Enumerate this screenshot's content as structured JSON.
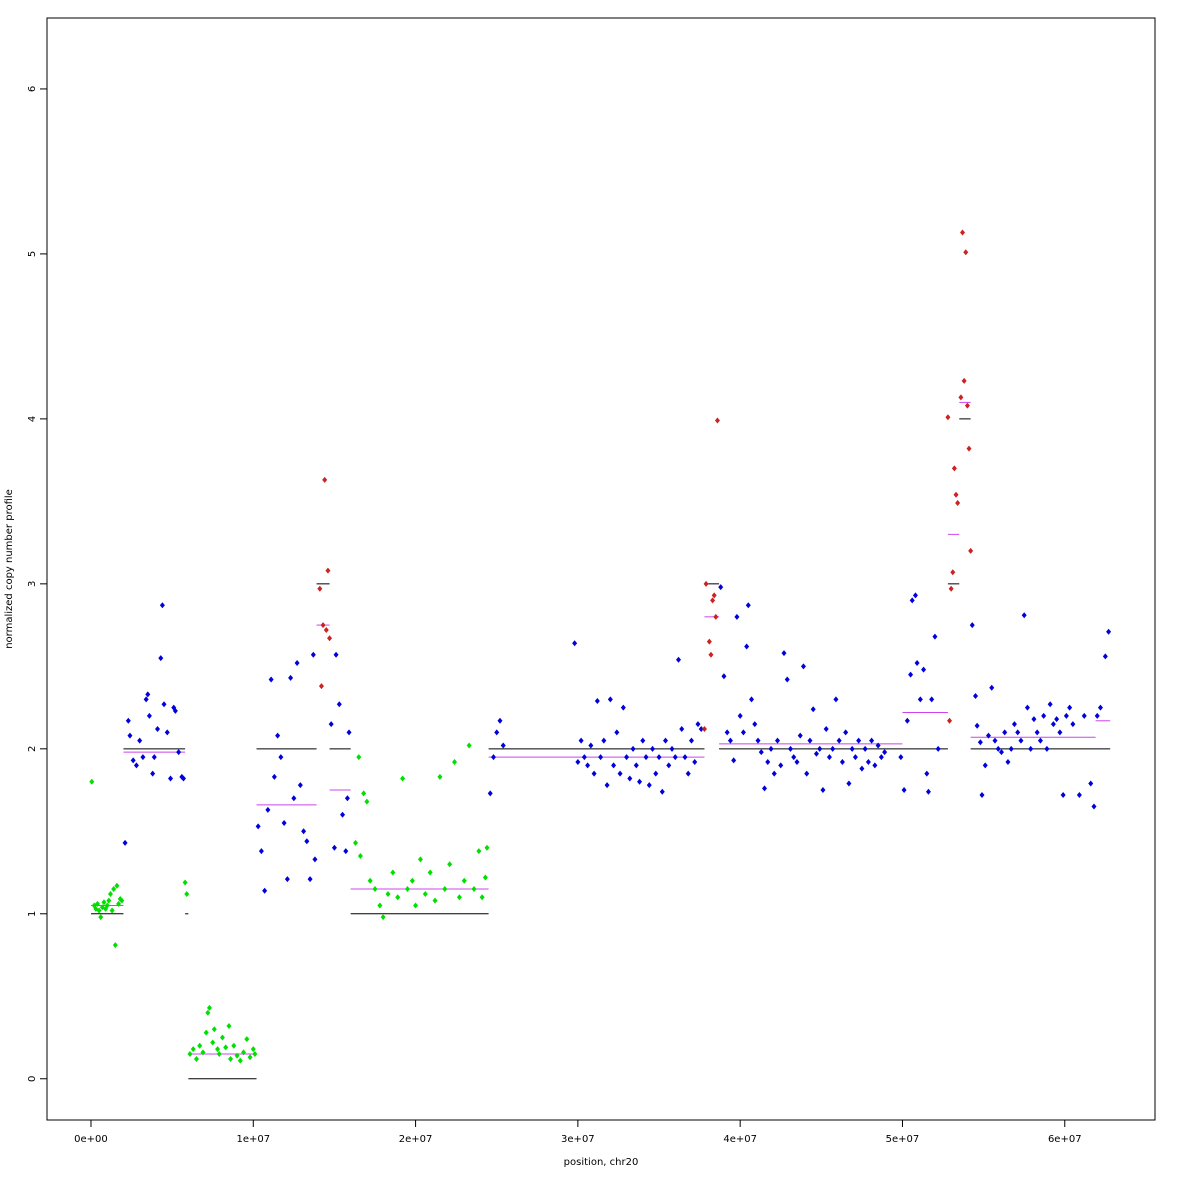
{
  "chart_data": {
    "type": "scatter",
    "xlabel": "position, chr20",
    "ylabel": "normalized copy number profile",
    "xlim": [
      -2710000.0,
      65560000.0
    ],
    "ylim": [
      -0.25,
      6.43
    ],
    "xticks": [
      {
        "value": 0,
        "label": "0e+00"
      },
      {
        "value": 10000000.0,
        "label": "1e+07"
      },
      {
        "value": 20000000.0,
        "label": "2e+07"
      },
      {
        "value": 30000000.0,
        "label": "3e+07"
      },
      {
        "value": 40000000.0,
        "label": "4e+07"
      },
      {
        "value": 50000000.0,
        "label": "5e+07"
      },
      {
        "value": 60000000.0,
        "label": "6e+07"
      }
    ],
    "yticks": [
      0,
      1,
      2,
      3,
      4,
      5,
      6
    ],
    "series": [
      {
        "color": "#00e000",
        "x": [
          50000.0,
          200000.0,
          300000.0,
          400000.0,
          500000.0,
          600000.0,
          700000.0,
          800000.0,
          900000.0,
          1000000.0,
          1100000.0,
          1200000.0,
          1300000.0,
          1400000.0,
          1500000.0,
          1600000.0,
          1700000.0,
          1800000.0,
          1900000.0,
          5800000.0,
          5900000.0,
          6100000.0,
          6300000.0,
          6500000.0,
          6700000.0,
          6900000.0,
          7100000.0,
          7200000.0,
          7300000.0,
          7500000.0,
          7600000.0,
          7800000.0,
          7900000.0,
          8100000.0,
          8300000.0,
          8500000.0,
          8600000.0,
          8800000.0,
          9000000.0,
          9200000.0,
          9400000.0,
          9600000.0,
          9800000.0,
          10000000.0,
          10100000.0,
          16300000.0,
          16500000.0,
          16600000.0,
          16800000.0,
          17000000.0,
          17200000.0,
          17500000.0,
          17800000.0,
          18000000.0,
          18300000.0,
          18600000.0,
          18900000.0,
          19200000.0,
          19500000.0,
          19800000.0,
          20000000.0,
          20300000.0,
          20600000.0,
          20900000.0,
          21200000.0,
          21500000.0,
          21800000.0,
          22100000.0,
          22400000.0,
          22700000.0,
          23000000.0,
          23300000.0,
          23600000.0,
          23900000.0,
          24100000.0,
          24300000.0,
          24400000.0
        ],
        "values": [
          1.8,
          1.05,
          1.03,
          1.06,
          1.02,
          0.98,
          1.04,
          1.07,
          1.03,
          1.05,
          1.08,
          1.12,
          1.02,
          1.15,
          0.81,
          1.17,
          1.06,
          1.09,
          1.08,
          1.19,
          1.12,
          0.15,
          0.18,
          0.12,
          0.2,
          0.16,
          0.28,
          0.4,
          0.43,
          0.22,
          0.3,
          0.18,
          0.15,
          0.25,
          0.19,
          0.32,
          0.12,
          0.2,
          0.14,
          0.11,
          0.16,
          0.24,
          0.13,
          0.18,
          0.15,
          1.43,
          1.95,
          1.35,
          1.73,
          1.68,
          1.2,
          1.15,
          1.05,
          0.98,
          1.12,
          1.25,
          1.1,
          1.82,
          1.15,
          1.2,
          1.05,
          1.33,
          1.12,
          1.25,
          1.08,
          1.83,
          1.15,
          1.3,
          1.92,
          1.1,
          1.2,
          2.02,
          1.15,
          1.38,
          1.1,
          1.22,
          1.4
        ]
      },
      {
        "color": "#0000dd",
        "x": [
          2100000.0,
          2300000.0,
          2400000.0,
          2600000.0,
          2800000.0,
          3000000.0,
          3200000.0,
          3400000.0,
          3500000.0,
          3600000.0,
          3800000.0,
          3900000.0,
          4100000.0,
          4300000.0,
          4400000.0,
          4500000.0,
          4700000.0,
          4900000.0,
          5100000.0,
          5200000.0,
          5400000.0,
          5600000.0,
          5700000.0,
          10300000.0,
          10500000.0,
          10700000.0,
          10900000.0,
          11100000.0,
          11300000.0,
          11500000.0,
          11700000.0,
          11900000.0,
          12100000.0,
          12300000.0,
          12500000.0,
          12700000.0,
          12900000.0,
          13100000.0,
          13300000.0,
          13500000.0,
          13700000.0,
          13800000.0,
          14800000.0,
          15000000.0,
          15100000.0,
          15300000.0,
          15500000.0,
          15700000.0,
          15800000.0,
          15900000.0,
          24600000.0,
          24800000.0,
          25000000.0,
          25200000.0,
          25400000.0,
          29800000.0,
          30000000.0,
          30200000.0,
          30400000.0,
          30600000.0,
          30800000.0,
          31000000.0,
          31200000.0,
          31400000.0,
          31600000.0,
          31800000.0,
          32000000.0,
          32200000.0,
          32400000.0,
          32600000.0,
          32800000.0,
          33000000.0,
          33200000.0,
          33400000.0,
          33600000.0,
          33800000.0,
          34000000.0,
          34200000.0,
          34400000.0,
          34600000.0,
          34800000.0,
          35000000.0,
          35200000.0,
          35400000.0,
          35600000.0,
          35800000.0,
          36000000.0,
          36200000.0,
          36400000.0,
          36600000.0,
          36800000.0,
          37000000.0,
          37200000.0,
          37400000.0,
          37600000.0,
          38800000.0,
          39000000.0,
          39200000.0,
          39400000.0,
          39600000.0,
          39800000.0,
          40000000.0,
          40200000.0,
          40400000.0,
          40500000.0,
          40700000.0,
          40900000.0,
          41100000.0,
          41300000.0,
          41500000.0,
          41700000.0,
          41900000.0,
          42100000.0,
          42300000.0,
          42500000.0,
          42700000.0,
          42900000.0,
          43100000.0,
          43300000.0,
          43500000.0,
          43700000.0,
          43900000.0,
          44100000.0,
          44300000.0,
          44500000.0,
          44700000.0,
          44900000.0,
          45100000.0,
          45300000.0,
          45500000.0,
          45700000.0,
          45900000.0,
          46100000.0,
          46300000.0,
          46500000.0,
          46700000.0,
          46900000.0,
          47100000.0,
          47300000.0,
          47500000.0,
          47700000.0,
          47900000.0,
          48100000.0,
          48300000.0,
          48500000.0,
          48700000.0,
          48900000.0,
          49900000.0,
          50100000.0,
          50300000.0,
          50500000.0,
          50600000.0,
          50800000.0,
          50900000.0,
          51100000.0,
          51300000.0,
          51500000.0,
          51600000.0,
          51800000.0,
          52000000.0,
          52200000.0,
          54300000.0,
          54500000.0,
          54600000.0,
          54800000.0,
          54900000.0,
          55100000.0,
          55300000.0,
          55500000.0,
          55700000.0,
          55900000.0,
          56100000.0,
          56300000.0,
          56500000.0,
          56700000.0,
          56900000.0,
          57100000.0,
          57300000.0,
          57500000.0,
          57700000.0,
          57900000.0,
          58100000.0,
          58300000.0,
          58500000.0,
          58700000.0,
          58900000.0,
          59100000.0,
          59300000.0,
          59500000.0,
          59700000.0,
          59900000.0,
          60100000.0,
          60300000.0,
          60500000.0,
          60900000.0,
          61200000.0,
          61600000.0,
          61800000.0,
          62000000.0,
          62200000.0,
          62500000.0,
          62700000.0
        ],
        "values": [
          1.43,
          2.17,
          2.08,
          1.93,
          1.9,
          2.05,
          1.95,
          2.3,
          2.33,
          2.2,
          1.85,
          1.95,
          2.12,
          2.55,
          2.87,
          2.27,
          2.1,
          1.82,
          2.25,
          2.23,
          1.98,
          1.83,
          1.82,
          1.53,
          1.38,
          1.14,
          1.63,
          2.42,
          1.83,
          2.08,
          1.95,
          1.55,
          1.21,
          2.43,
          1.7,
          2.52,
          1.78,
          1.5,
          1.44,
          1.21,
          2.57,
          1.33,
          2.15,
          1.4,
          2.57,
          2.27,
          1.6,
          1.38,
          1.7,
          2.1,
          1.73,
          1.95,
          2.1,
          2.17,
          2.02,
          2.64,
          1.92,
          2.05,
          1.95,
          1.9,
          2.02,
          1.85,
          2.29,
          1.95,
          2.05,
          1.78,
          2.3,
          1.9,
          2.1,
          1.85,
          2.25,
          1.95,
          1.82,
          2.0,
          1.9,
          1.8,
          2.05,
          1.95,
          1.78,
          2.0,
          1.85,
          1.95,
          1.74,
          2.05,
          1.9,
          2.0,
          1.95,
          2.54,
          2.12,
          1.95,
          1.85,
          2.05,
          1.92,
          2.15,
          2.12,
          2.98,
          2.44,
          2.1,
          2.05,
          1.93,
          2.8,
          2.2,
          2.1,
          2.62,
          2.87,
          2.3,
          2.15,
          2.05,
          1.98,
          1.76,
          1.92,
          2.0,
          1.85,
          2.05,
          1.9,
          2.58,
          2.42,
          2.0,
          1.95,
          1.92,
          2.08,
          2.5,
          1.85,
          2.05,
          2.24,
          1.97,
          2.0,
          1.75,
          2.12,
          1.95,
          2.0,
          2.3,
          2.05,
          1.92,
          2.1,
          1.79,
          2.0,
          1.95,
          2.05,
          1.88,
          2.0,
          1.92,
          2.05,
          1.9,
          2.02,
          1.95,
          1.98,
          1.95,
          1.75,
          2.17,
          2.45,
          2.9,
          2.93,
          2.52,
          2.3,
          2.48,
          1.85,
          1.74,
          2.3,
          2.68,
          2.0,
          2.75,
          2.32,
          2.14,
          2.04,
          1.72,
          1.9,
          2.08,
          2.37,
          2.05,
          2.0,
          1.98,
          2.1,
          1.92,
          2.0,
          2.15,
          2.1,
          2.05,
          2.81,
          2.25,
          2.0,
          2.18,
          2.1,
          2.05,
          2.2,
          2.0,
          2.27,
          2.15,
          2.18,
          2.1,
          1.72,
          2.2,
          2.25,
          2.15,
          1.72,
          2.2,
          1.79,
          1.65,
          2.2,
          2.25,
          2.56,
          2.71
        ]
      },
      {
        "color": "#cc2222",
        "x": [
          14100000.0,
          14200000.0,
          14300000.0,
          14400000.0,
          14500000.0,
          14600000.0,
          14700000.0,
          37800000.0,
          37900000.0,
          38100000.0,
          38200000.0,
          38300000.0,
          38400000.0,
          38500000.0,
          38600000.0,
          52800000.0,
          52900000.0,
          53000000.0,
          53100000.0,
          53200000.0,
          53300000.0,
          53400000.0,
          53600000.0,
          53700000.0,
          53800000.0,
          53900000.0,
          54000000.0,
          54100000.0,
          54200000.0
        ],
        "values": [
          2.97,
          2.38,
          2.75,
          3.63,
          2.72,
          3.08,
          2.67,
          2.12,
          3.0,
          2.65,
          2.57,
          2.9,
          2.93,
          2.8,
          3.99,
          4.01,
          2.17,
          2.97,
          3.07,
          3.7,
          3.54,
          3.49,
          4.13,
          5.13,
          4.23,
          5.01,
          4.08,
          3.82,
          3.2
        ]
      }
    ],
    "segments": [
      {
        "color": "#000000",
        "x0": [
          0,
          2000000.0,
          5800000.0,
          6000000.0,
          10200000.0,
          13900000.0,
          14700000.0,
          16000000.0,
          24500000.0,
          37800000.0,
          38700000.0,
          52800000.0,
          53500000.0,
          54200000.0
        ],
        "x1": [
          2000000.0,
          5800000.0,
          6000000.0,
          10200000.0,
          13900000.0,
          14700000.0,
          16000000.0,
          24500000.0,
          37800000.0,
          38700000.0,
          52800000.0,
          53500000.0,
          54200000.0,
          62800000.0
        ],
        "values": [
          1,
          2,
          1,
          0,
          2,
          3,
          2,
          1,
          2,
          3,
          2,
          3,
          4,
          2
        ]
      },
      {
        "color": "#cc44ee",
        "x0": [
          0,
          2000000.0,
          6000000.0,
          10200000.0,
          13900000.0,
          14700000.0,
          16000000.0,
          24500000.0,
          37800000.0,
          38700000.0,
          50000000.0,
          52800000.0,
          53500000.0,
          54200000.0,
          61900000.0
        ],
        "x1": [
          2000000.0,
          5800000.0,
          10200000.0,
          13900000.0,
          14700000.0,
          16000000.0,
          24500000.0,
          37800000.0,
          38700000.0,
          50000000.0,
          52800000.0,
          53500000.0,
          54200000.0,
          61900000.0,
          62800000.0
        ],
        "values": [
          1.05,
          1.98,
          0.15,
          1.66,
          2.75,
          1.75,
          1.15,
          1.95,
          2.8,
          2.03,
          2.22,
          3.3,
          4.1,
          2.07,
          2.17
        ]
      }
    ]
  }
}
